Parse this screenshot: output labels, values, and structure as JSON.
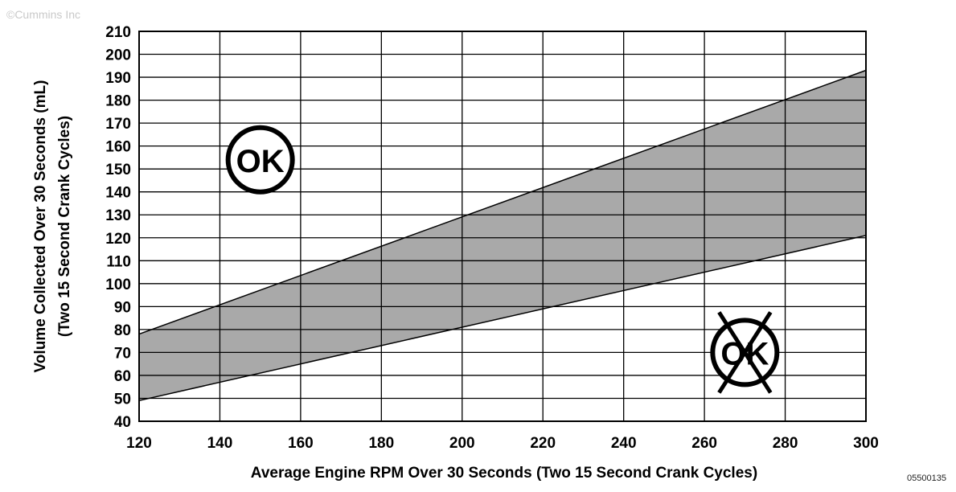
{
  "copyright": "©Cummins Inc",
  "figure_id": "05500135",
  "chart_data": {
    "type": "area",
    "title": "",
    "xlabel": "Average Engine RPM Over 30 Seconds (Two 15 Second Crank Cycles)",
    "ylabel_line1": "Volume Collected Over 30 Seconds (mL)",
    "ylabel_line2": "(Two 15 Second Crank Cycles)",
    "xlim": [
      120,
      300
    ],
    "ylim": [
      40,
      210
    ],
    "xticks": [
      120,
      140,
      160,
      180,
      200,
      220,
      240,
      260,
      280,
      300
    ],
    "yticks": [
      40,
      50,
      60,
      70,
      80,
      90,
      100,
      110,
      120,
      130,
      140,
      150,
      160,
      170,
      180,
      190,
      200,
      210
    ],
    "grid": true,
    "band": {
      "upper": {
        "x": [
          120,
          300
        ],
        "y": [
          78,
          193
        ]
      },
      "lower": {
        "x": [
          120,
          300
        ],
        "y": [
          49,
          121
        ]
      },
      "fill_color": "#a9a9a9"
    },
    "annotations": [
      {
        "text": "OK",
        "x": 150,
        "y": 154,
        "symbol": "circle"
      },
      {
        "text": "OK",
        "x": 270,
        "y": 70,
        "symbol": "circle-crossed"
      }
    ]
  }
}
